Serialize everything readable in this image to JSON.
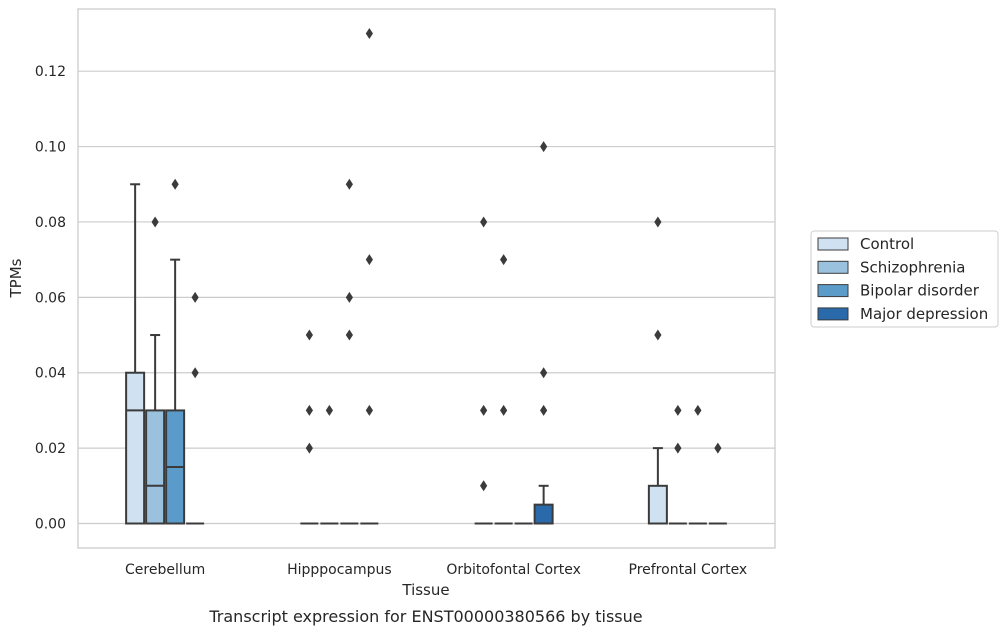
{
  "chart_data": {
    "type": "box",
    "title": "",
    "caption": "Transcript expression for ENST00000380566 by tissue",
    "xlabel": "Tissue",
    "ylabel": "TPMs",
    "ylim": [
      -0.0065,
      0.1365
    ],
    "yticks": [
      0.0,
      0.02,
      0.04,
      0.06,
      0.08,
      0.1,
      0.12
    ],
    "ytick_labels": [
      "0.00",
      "0.02",
      "0.04",
      "0.06",
      "0.08",
      "0.10",
      "0.12"
    ],
    "categories": [
      "Cerebellum",
      "Hipppocampus",
      "Orbitofontal Cortex",
      "Prefrontal Cortex"
    ],
    "grid": "horizontal",
    "legend_position": "right",
    "series": [
      {
        "name": "Control",
        "color": "#d0e1f2",
        "boxes": [
          {
            "q1": 0.0,
            "median": 0.03,
            "q3": 0.04,
            "whisker_low": 0.0,
            "whisker_high": 0.09,
            "outliers": []
          },
          {
            "q1": 0.0,
            "median": 0.0,
            "q3": 0.0,
            "whisker_low": 0.0,
            "whisker_high": 0.0,
            "outliers": [
              0.02,
              0.03,
              0.05
            ]
          },
          {
            "q1": 0.0,
            "median": 0.0,
            "q3": 0.0,
            "whisker_low": 0.0,
            "whisker_high": 0.0,
            "outliers": [
              0.01,
              0.03,
              0.08
            ]
          },
          {
            "q1": 0.0,
            "median": 0.0,
            "q3": 0.01,
            "whisker_low": 0.0,
            "whisker_high": 0.02,
            "outliers": [
              0.05,
              0.08
            ]
          }
        ]
      },
      {
        "name": "Schizophrenia",
        "color": "#9ac2de",
        "boxes": [
          {
            "q1": 0.0,
            "median": 0.01,
            "q3": 0.03,
            "whisker_low": 0.0,
            "whisker_high": 0.05,
            "outliers": [
              0.08
            ]
          },
          {
            "q1": 0.0,
            "median": 0.0,
            "q3": 0.0,
            "whisker_low": 0.0,
            "whisker_high": 0.0,
            "outliers": [
              0.03
            ]
          },
          {
            "q1": 0.0,
            "median": 0.0,
            "q3": 0.0,
            "whisker_low": 0.0,
            "whisker_high": 0.0,
            "outliers": [
              0.03,
              0.07
            ]
          },
          {
            "q1": 0.0,
            "median": 0.0,
            "q3": 0.0,
            "whisker_low": 0.0,
            "whisker_high": 0.0,
            "outliers": [
              0.02,
              0.03
            ]
          }
        ]
      },
      {
        "name": "Bipolar disorder",
        "color": "#5a9bc9",
        "boxes": [
          {
            "q1": 0.0,
            "median": 0.015,
            "q3": 0.03,
            "whisker_low": 0.0,
            "whisker_high": 0.07,
            "outliers": [
              0.09
            ]
          },
          {
            "q1": 0.0,
            "median": 0.0,
            "q3": 0.0,
            "whisker_low": 0.0,
            "whisker_high": 0.0,
            "outliers": [
              0.05,
              0.06,
              0.09
            ]
          },
          {
            "q1": 0.0,
            "median": 0.0,
            "q3": 0.0,
            "whisker_low": 0.0,
            "whisker_high": 0.0,
            "outliers": []
          },
          {
            "q1": 0.0,
            "median": 0.0,
            "q3": 0.0,
            "whisker_low": 0.0,
            "whisker_high": 0.0,
            "outliers": [
              0.03
            ]
          }
        ]
      },
      {
        "name": "Major depression",
        "color": "#2a6aaa",
        "boxes": [
          {
            "q1": 0.0,
            "median": 0.0,
            "q3": 0.0,
            "whisker_low": 0.0,
            "whisker_high": 0.0,
            "outliers": [
              0.04,
              0.06
            ]
          },
          {
            "q1": 0.0,
            "median": 0.0,
            "q3": 0.0,
            "whisker_low": 0.0,
            "whisker_high": 0.0,
            "outliers": [
              0.03,
              0.07,
              0.13
            ]
          },
          {
            "q1": 0.0,
            "median": 0.0,
            "q3": 0.005,
            "whisker_low": 0.0,
            "whisker_high": 0.01,
            "outliers": [
              0.03,
              0.04,
              0.1
            ]
          },
          {
            "q1": 0.0,
            "median": 0.0,
            "q3": 0.0,
            "whisker_low": 0.0,
            "whisker_high": 0.0,
            "outliers": [
              0.02
            ]
          }
        ]
      }
    ]
  }
}
